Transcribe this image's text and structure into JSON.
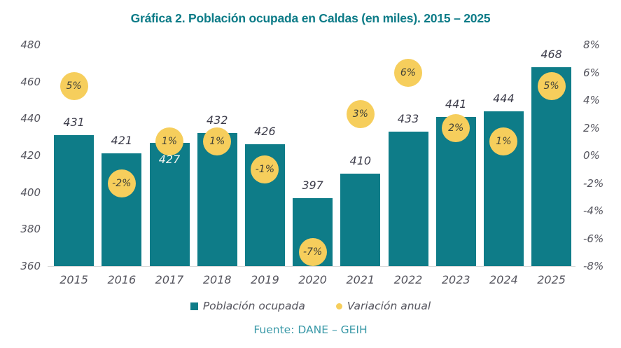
{
  "title": "Gráfica 2. Población ocupada en Caldas (en miles). 2015 – 2025",
  "source": "Fuente: DANE – GEIH",
  "legend": [
    {
      "label": "Población ocupada",
      "marker": "square",
      "color": "#0E7C88"
    },
    {
      "label": "Variación anual",
      "marker": "circle",
      "color": "#F6CE5C"
    }
  ],
  "colors": {
    "bar": "#0E7C88",
    "circle": "#F6CE5C",
    "title": "#0C7B87",
    "source": "#3A99A8",
    "axis_text": "#55555E",
    "value_text": "#3C3C4A",
    "baseline": "#D9D9D9"
  },
  "chart_data": {
    "type": "bar",
    "title": "Gráfica 2. Población ocupada en Caldas (en miles). 2015 – 2025",
    "categories": [
      "2015",
      "2016",
      "2017",
      "2018",
      "2019",
      "2020",
      "2021",
      "2022",
      "2023",
      "2024",
      "2025"
    ],
    "series": [
      {
        "name": "Población ocupada",
        "type": "bar",
        "axis": "left",
        "values": [
          431,
          421,
          427,
          432,
          426,
          397,
          410,
          433,
          441,
          444,
          468
        ],
        "label_placement": [
          "above",
          "above",
          "inside",
          "above",
          "above",
          "above",
          "above",
          "above",
          "above",
          "above",
          "above"
        ]
      },
      {
        "name": "Variación anual",
        "type": "point",
        "axis": "right",
        "values": [
          5,
          -2,
          1,
          1,
          -1,
          -7,
          3,
          6,
          2,
          1,
          5
        ],
        "suffix": "%"
      }
    ],
    "left_axis": {
      "min": 360,
      "max": 480,
      "step": 20,
      "ticks": [
        480,
        460,
        440,
        420,
        400,
        380,
        360
      ]
    },
    "right_axis": {
      "min": -8,
      "max": 8,
      "step": 2,
      "suffix": "%",
      "ticks": [
        8,
        6,
        4,
        2,
        0,
        -2,
        -4,
        -6,
        -8
      ]
    },
    "grid": false,
    "legend_position": "bottom",
    "xlabel": "",
    "ylabel": ""
  }
}
